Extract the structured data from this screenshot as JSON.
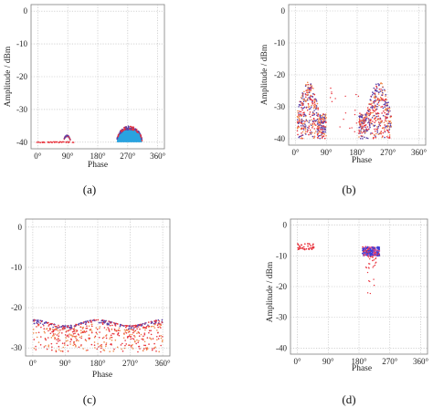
{
  "chart_data": [
    {
      "id": "a",
      "type": "scatter",
      "panel_label": "(a)",
      "xlabel": "Phase",
      "ylabel": "Amplitude / dBm",
      "xlim": [
        -20,
        380
      ],
      "ylim": [
        -42,
        2
      ],
      "x_ticks": [
        0,
        90,
        180,
        270,
        360
      ],
      "x_tick_labels": [
        "0°",
        "90°",
        "180°",
        "270°",
        "360°"
      ],
      "y_ticks": [
        0,
        -10,
        -20,
        -30,
        -40
      ],
      "y_tick_labels": [
        "0",
        "-10",
        "-20",
        "-30",
        "-40"
      ],
      "grid": true,
      "colors": {
        "fill": "#29a3e0",
        "dense": "#5a3fa8",
        "sparse": "#e8323c",
        "grid": "#b8b8b8",
        "frame": "#7f7f7f",
        "plot_bg": "#ffffff"
      },
      "clusters": [
        {
          "kind": "baseline",
          "x_range": [
            -5,
            110
          ],
          "y": -40
        },
        {
          "kind": "dome",
          "x_center": 88,
          "half_width": 10,
          "peak_height": 2.0,
          "base": -40
        },
        {
          "kind": "dome_fill",
          "x_center": 275,
          "half_width": 38,
          "peak_height": 4.5,
          "base": -40
        }
      ]
    },
    {
      "id": "b",
      "type": "scatter",
      "panel_label": "(b)",
      "xlabel": "Phase",
      "ylabel": "Amplitude / dBm",
      "xlim": [
        -20,
        380
      ],
      "ylim": [
        -42,
        2
      ],
      "x_ticks": [
        0,
        90,
        180,
        270,
        360
      ],
      "x_tick_labels": [
        "0°",
        "90°",
        "180°",
        "270°",
        "360°"
      ],
      "y_ticks": [
        0,
        -10,
        -20,
        -30,
        -40
      ],
      "y_tick_labels": [
        "0",
        "-10",
        "-20",
        "-30",
        "-40"
      ],
      "grid": true,
      "colors": {
        "dense": "#5a3fa8",
        "sparse": "#e8323c",
        "mid": "#f08a4b",
        "grid": "#b8b8b8",
        "frame": "#7f7f7f",
        "plot_bg": "#ffffff"
      },
      "clusters": [
        {
          "kind": "band",
          "x_range": [
            5,
            90
          ],
          "y_range": [
            -40,
            -22
          ],
          "skew": "left-tall"
        },
        {
          "kind": "band",
          "x_range": [
            185,
            280
          ],
          "y_range": [
            -40,
            -22
          ],
          "skew": "right-tall"
        },
        {
          "kind": "scatter",
          "x_range": [
            90,
            185
          ],
          "y_range": [
            -38,
            -24
          ]
        }
      ]
    },
    {
      "id": "c",
      "type": "scatter",
      "panel_label": "(c)",
      "xlabel": "Phase",
      "ylabel": "Amplitude / dBm",
      "xlim": [
        -20,
        380
      ],
      "ylim": [
        -32,
        2
      ],
      "x_ticks": [
        0,
        90,
        180,
        270,
        360
      ],
      "x_tick_labels": [
        "0°",
        "90°",
        "180°",
        "270°",
        "360°"
      ],
      "y_ticks": [
        0,
        -10,
        -20,
        -30
      ],
      "y_tick_labels": [
        "0",
        "-10",
        "-20",
        "-30"
      ],
      "grid": true,
      "colors": {
        "dense": "#5a3fa8",
        "sparse": "#e8323c",
        "mid": "#f08a4b",
        "grid": "#b8b8b8",
        "frame": "#7f7f7f",
        "plot_bg": "#ffffff"
      },
      "clusters": [
        {
          "kind": "wave_band",
          "x_range": [
            0,
            360
          ],
          "upper": -23,
          "lower": -31,
          "wave_amplitude": 1.5
        }
      ]
    },
    {
      "id": "d",
      "type": "scatter",
      "panel_label": "(d)",
      "xlabel": "Phase",
      "ylabel": "Amplitude / dBm",
      "xlim": [
        -20,
        380
      ],
      "ylim": [
        -42,
        2
      ],
      "x_ticks": [
        0,
        90,
        180,
        270,
        360
      ],
      "x_tick_labels": [
        "0°",
        "90°",
        "180°",
        "270°",
        "360°"
      ],
      "y_ticks": [
        0,
        -10,
        -20,
        -30,
        -40
      ],
      "y_tick_labels": [
        "0",
        "-10",
        "-20",
        "-30",
        "-40"
      ],
      "grid": true,
      "colors": {
        "dense": "#3a3fd8",
        "sparse": "#e8323c",
        "mid": "#d050a0",
        "grid": "#b8b8b8",
        "frame": "#7f7f7f",
        "plot_bg": "#ffffff"
      },
      "clusters": [
        {
          "kind": "blob",
          "x_range": [
            0,
            50
          ],
          "y_range": [
            -8,
            -6
          ]
        },
        {
          "kind": "blob_dense",
          "x_range": [
            190,
            240
          ],
          "y_range": [
            -10,
            -7
          ]
        },
        {
          "kind": "tail",
          "x_range": [
            200,
            230
          ],
          "y_range": [
            -25,
            -10
          ]
        }
      ]
    }
  ]
}
